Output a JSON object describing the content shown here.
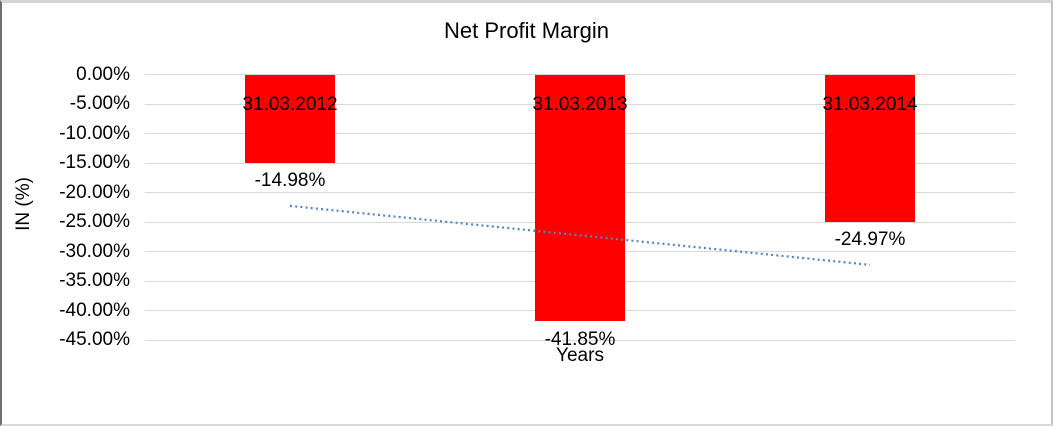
{
  "chart_data": {
    "type": "bar",
    "title": "Net Profit Margin",
    "xlabel": "Years",
    "ylabel": "IN (%)",
    "categories": [
      "31.03.2012",
      "31.03.2013",
      "31.03.2014"
    ],
    "values": [
      -14.98,
      -41.85,
      -24.97
    ],
    "data_labels": [
      "-14.98%",
      "-41.85%",
      "-24.97%"
    ],
    "yticks": [
      "0.00%",
      "-5.00%",
      "-10.00%",
      "-15.00%",
      "-20.00%",
      "-25.00%",
      "-30.00%",
      "-35.00%",
      "-40.00%",
      "-45.00%"
    ],
    "ylim": [
      -45,
      0
    ],
    "ytick_step": 5,
    "grid": true,
    "legend": false,
    "colors": {
      "bar": "#ff0000",
      "gridline": "#d9d9d9",
      "text": "#000000",
      "trendline": "#4f86c8"
    },
    "trendline": {
      "type": "linear",
      "style": "dotted",
      "fitted_values": [
        -22.27,
        -27.27,
        -32.26
      ]
    }
  }
}
